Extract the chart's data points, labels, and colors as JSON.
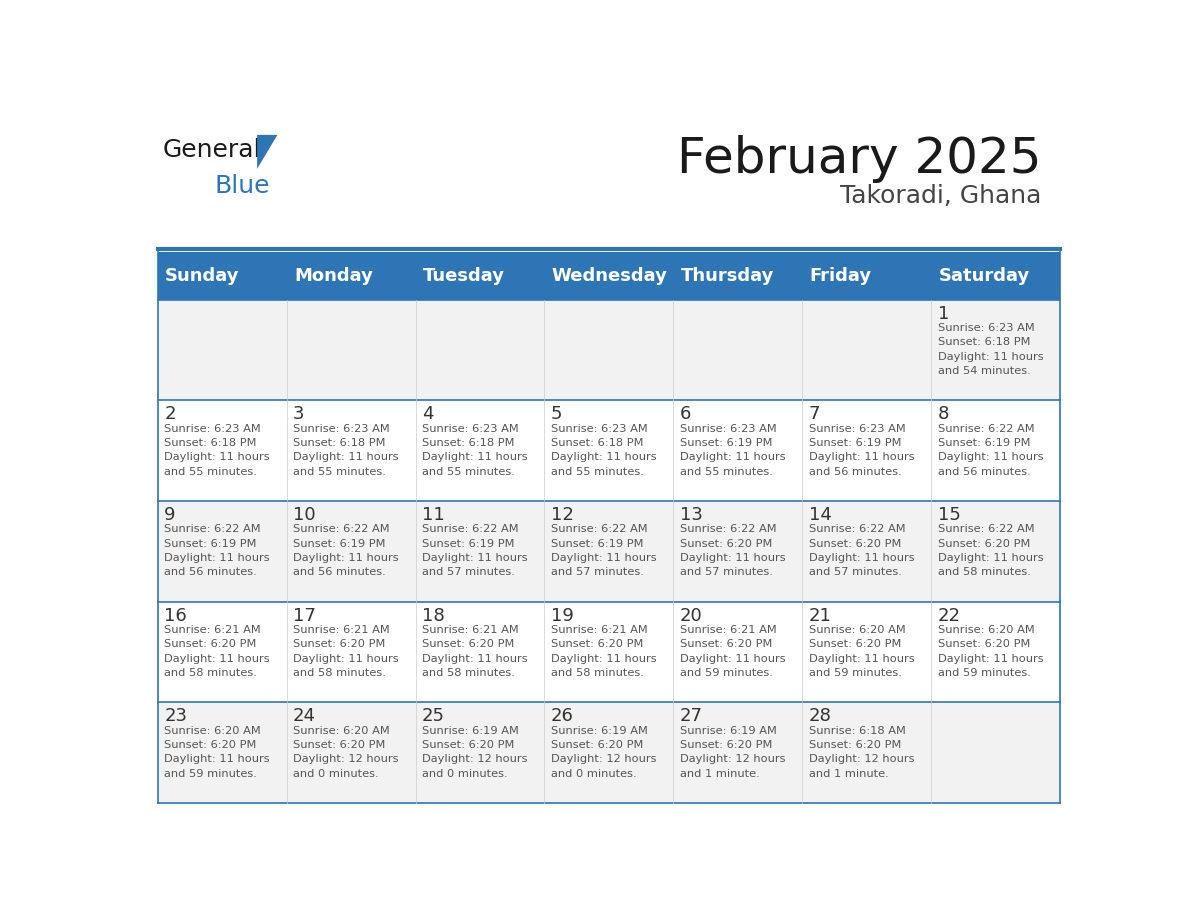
{
  "title": "February 2025",
  "subtitle": "Takoradi, Ghana",
  "header_bg": "#2E75B6",
  "header_text_color": "#FFFFFF",
  "weekdays": [
    "Sunday",
    "Monday",
    "Tuesday",
    "Wednesday",
    "Thursday",
    "Friday",
    "Saturday"
  ],
  "row_bg_even": "#F2F2F2",
  "row_bg_odd": "#FFFFFF",
  "cell_border_color": "#2E75B6",
  "day_number_color": "#333333",
  "cell_text_color": "#555555",
  "logo_general_color": "#1A1A1A",
  "logo_blue_color": "#2E75B6",
  "calendar": [
    [
      null,
      null,
      null,
      null,
      null,
      null,
      {
        "day": 1,
        "sunrise": "6:23 AM",
        "sunset": "6:18 PM",
        "daylight": "11 hours\nand 54 minutes."
      }
    ],
    [
      {
        "day": 2,
        "sunrise": "6:23 AM",
        "sunset": "6:18 PM",
        "daylight": "11 hours\nand 55 minutes."
      },
      {
        "day": 3,
        "sunrise": "6:23 AM",
        "sunset": "6:18 PM",
        "daylight": "11 hours\nand 55 minutes."
      },
      {
        "day": 4,
        "sunrise": "6:23 AM",
        "sunset": "6:18 PM",
        "daylight": "11 hours\nand 55 minutes."
      },
      {
        "day": 5,
        "sunrise": "6:23 AM",
        "sunset": "6:18 PM",
        "daylight": "11 hours\nand 55 minutes."
      },
      {
        "day": 6,
        "sunrise": "6:23 AM",
        "sunset": "6:19 PM",
        "daylight": "11 hours\nand 55 minutes."
      },
      {
        "day": 7,
        "sunrise": "6:23 AM",
        "sunset": "6:19 PM",
        "daylight": "11 hours\nand 56 minutes."
      },
      {
        "day": 8,
        "sunrise": "6:22 AM",
        "sunset": "6:19 PM",
        "daylight": "11 hours\nand 56 minutes."
      }
    ],
    [
      {
        "day": 9,
        "sunrise": "6:22 AM",
        "sunset": "6:19 PM",
        "daylight": "11 hours\nand 56 minutes."
      },
      {
        "day": 10,
        "sunrise": "6:22 AM",
        "sunset": "6:19 PM",
        "daylight": "11 hours\nand 56 minutes."
      },
      {
        "day": 11,
        "sunrise": "6:22 AM",
        "sunset": "6:19 PM",
        "daylight": "11 hours\nand 57 minutes."
      },
      {
        "day": 12,
        "sunrise": "6:22 AM",
        "sunset": "6:19 PM",
        "daylight": "11 hours\nand 57 minutes."
      },
      {
        "day": 13,
        "sunrise": "6:22 AM",
        "sunset": "6:20 PM",
        "daylight": "11 hours\nand 57 minutes."
      },
      {
        "day": 14,
        "sunrise": "6:22 AM",
        "sunset": "6:20 PM",
        "daylight": "11 hours\nand 57 minutes."
      },
      {
        "day": 15,
        "sunrise": "6:22 AM",
        "sunset": "6:20 PM",
        "daylight": "11 hours\nand 58 minutes."
      }
    ],
    [
      {
        "day": 16,
        "sunrise": "6:21 AM",
        "sunset": "6:20 PM",
        "daylight": "11 hours\nand 58 minutes."
      },
      {
        "day": 17,
        "sunrise": "6:21 AM",
        "sunset": "6:20 PM",
        "daylight": "11 hours\nand 58 minutes."
      },
      {
        "day": 18,
        "sunrise": "6:21 AM",
        "sunset": "6:20 PM",
        "daylight": "11 hours\nand 58 minutes."
      },
      {
        "day": 19,
        "sunrise": "6:21 AM",
        "sunset": "6:20 PM",
        "daylight": "11 hours\nand 58 minutes."
      },
      {
        "day": 20,
        "sunrise": "6:21 AM",
        "sunset": "6:20 PM",
        "daylight": "11 hours\nand 59 minutes."
      },
      {
        "day": 21,
        "sunrise": "6:20 AM",
        "sunset": "6:20 PM",
        "daylight": "11 hours\nand 59 minutes."
      },
      {
        "day": 22,
        "sunrise": "6:20 AM",
        "sunset": "6:20 PM",
        "daylight": "11 hours\nand 59 minutes."
      }
    ],
    [
      {
        "day": 23,
        "sunrise": "6:20 AM",
        "sunset": "6:20 PM",
        "daylight": "11 hours\nand 59 minutes."
      },
      {
        "day": 24,
        "sunrise": "6:20 AM",
        "sunset": "6:20 PM",
        "daylight": "12 hours\nand 0 minutes."
      },
      {
        "day": 25,
        "sunrise": "6:19 AM",
        "sunset": "6:20 PM",
        "daylight": "12 hours\nand 0 minutes."
      },
      {
        "day": 26,
        "sunrise": "6:19 AM",
        "sunset": "6:20 PM",
        "daylight": "12 hours\nand 0 minutes."
      },
      {
        "day": 27,
        "sunrise": "6:19 AM",
        "sunset": "6:20 PM",
        "daylight": "12 hours\nand 1 minute."
      },
      {
        "day": 28,
        "sunrise": "6:18 AM",
        "sunset": "6:20 PM",
        "daylight": "12 hours\nand 1 minute."
      },
      null
    ]
  ]
}
